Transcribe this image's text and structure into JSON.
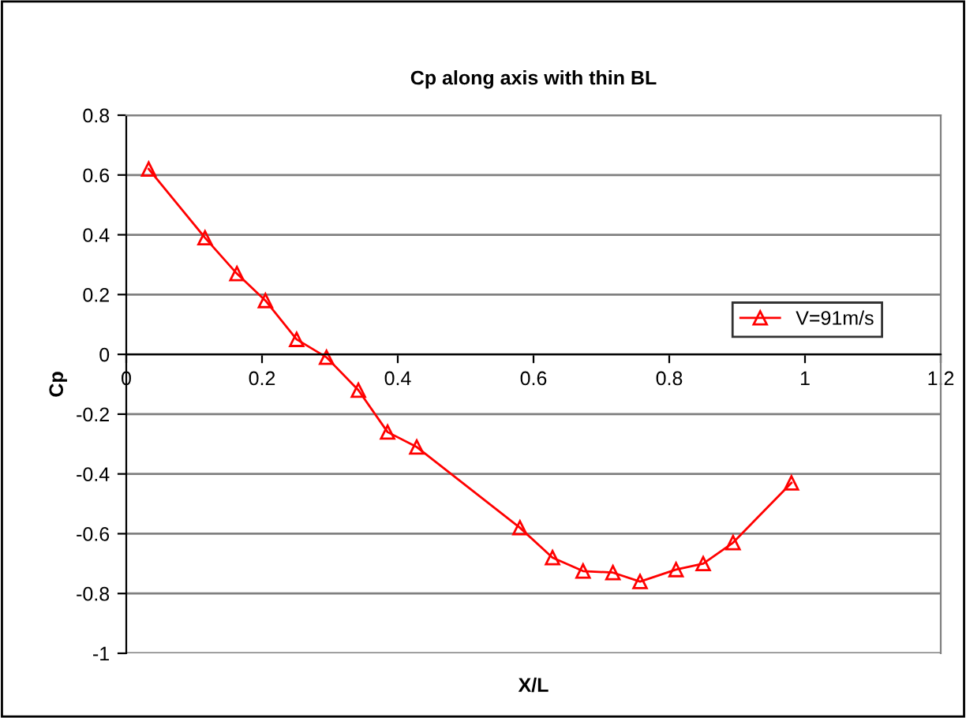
{
  "chart_data": {
    "type": "line",
    "title": "Cp along axis with thin BL",
    "xlabel": "X/L",
    "ylabel": "Cp",
    "xlim": [
      0,
      1.2
    ],
    "xticks": [
      0,
      0.2,
      0.4,
      0.6,
      0.8,
      1,
      1.2
    ],
    "ylim": [
      -1,
      0.8
    ],
    "yticks": [
      -1,
      -0.8,
      -0.6,
      -0.4,
      -0.2,
      0,
      0.2,
      0.4,
      0.6,
      0.8
    ],
    "grid": "y",
    "legend": "right",
    "marker": "triangle",
    "line_style": "solid",
    "series": [
      {
        "name": "V=91m/s",
        "color": "#ff0000",
        "x": [
          0.033,
          0.116,
          0.163,
          0.205,
          0.251,
          0.295,
          0.342,
          0.385,
          0.428,
          0.58,
          0.628,
          0.673,
          0.717,
          0.757,
          0.81,
          0.85,
          0.894,
          0.98
        ],
        "values": [
          0.62,
          0.39,
          0.27,
          0.18,
          0.05,
          -0.01,
          -0.12,
          -0.26,
          -0.31,
          -0.58,
          -0.68,
          -0.725,
          -0.73,
          -0.76,
          -0.72,
          -0.7,
          -0.63,
          -0.43
        ]
      }
    ]
  }
}
